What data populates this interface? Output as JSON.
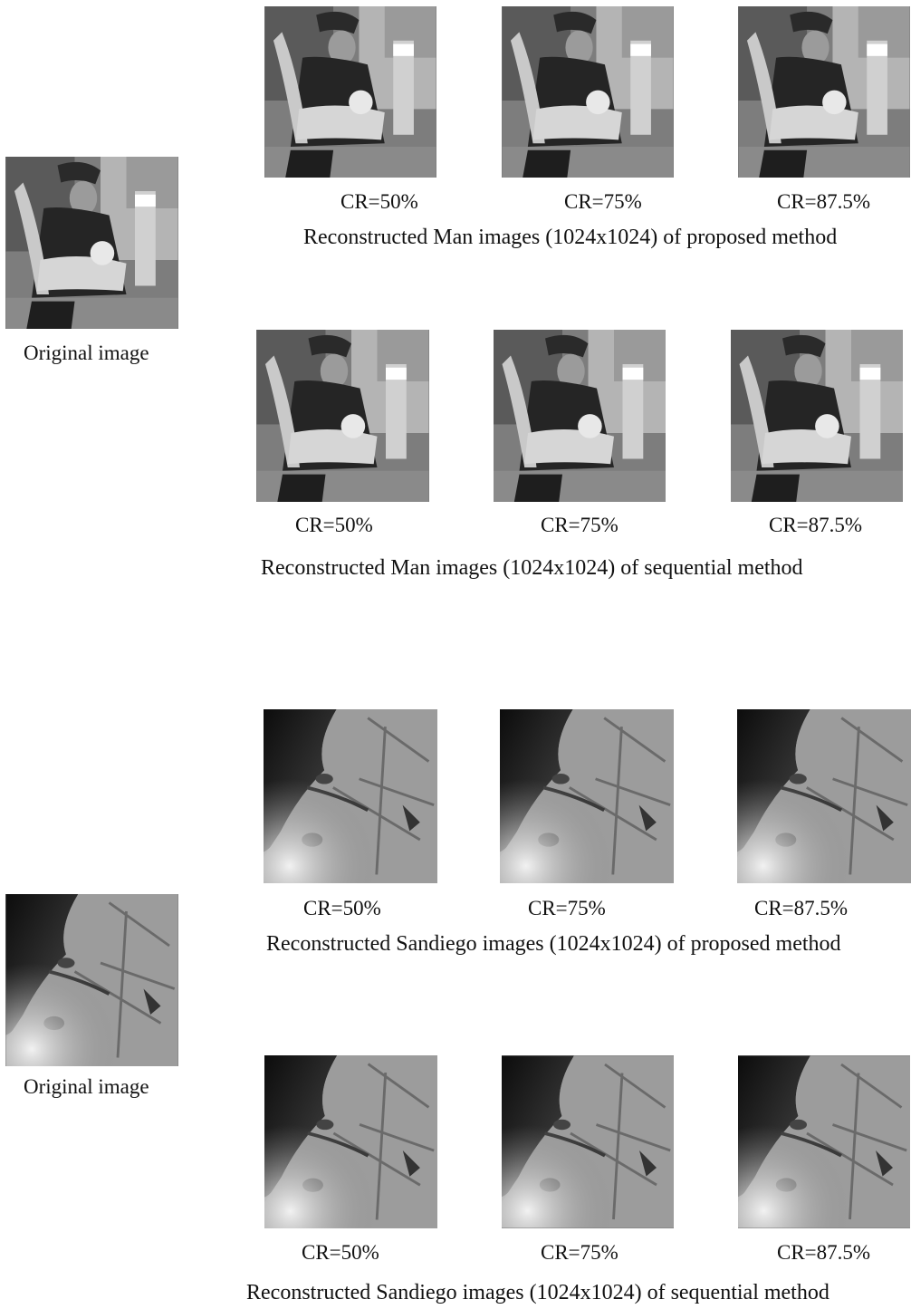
{
  "man": {
    "original_caption": "Original image",
    "proposed": {
      "captions": [
        "CR=50%",
        "CR=75%",
        "CR=87.5%"
      ],
      "title": "Reconstructed Man images (1024x1024) of proposed method"
    },
    "sequential": {
      "captions": [
        "CR=50%",
        "CR=75%",
        "CR=87.5%"
      ],
      "title": "Reconstructed Man images (1024x1024) of sequential method"
    }
  },
  "sandiego": {
    "original_caption": "Original image",
    "proposed": {
      "captions": [
        "CR=50%",
        "CR=75%",
        "CR=87.5%"
      ],
      "title": "Reconstructed Sandiego images (1024x1024) of proposed method"
    },
    "sequential": {
      "captions": [
        "CR=50%",
        "CR=75%",
        "CR=87.5%"
      ],
      "title": "Reconstructed Sandiego images (1024x1024) of sequential method"
    }
  }
}
